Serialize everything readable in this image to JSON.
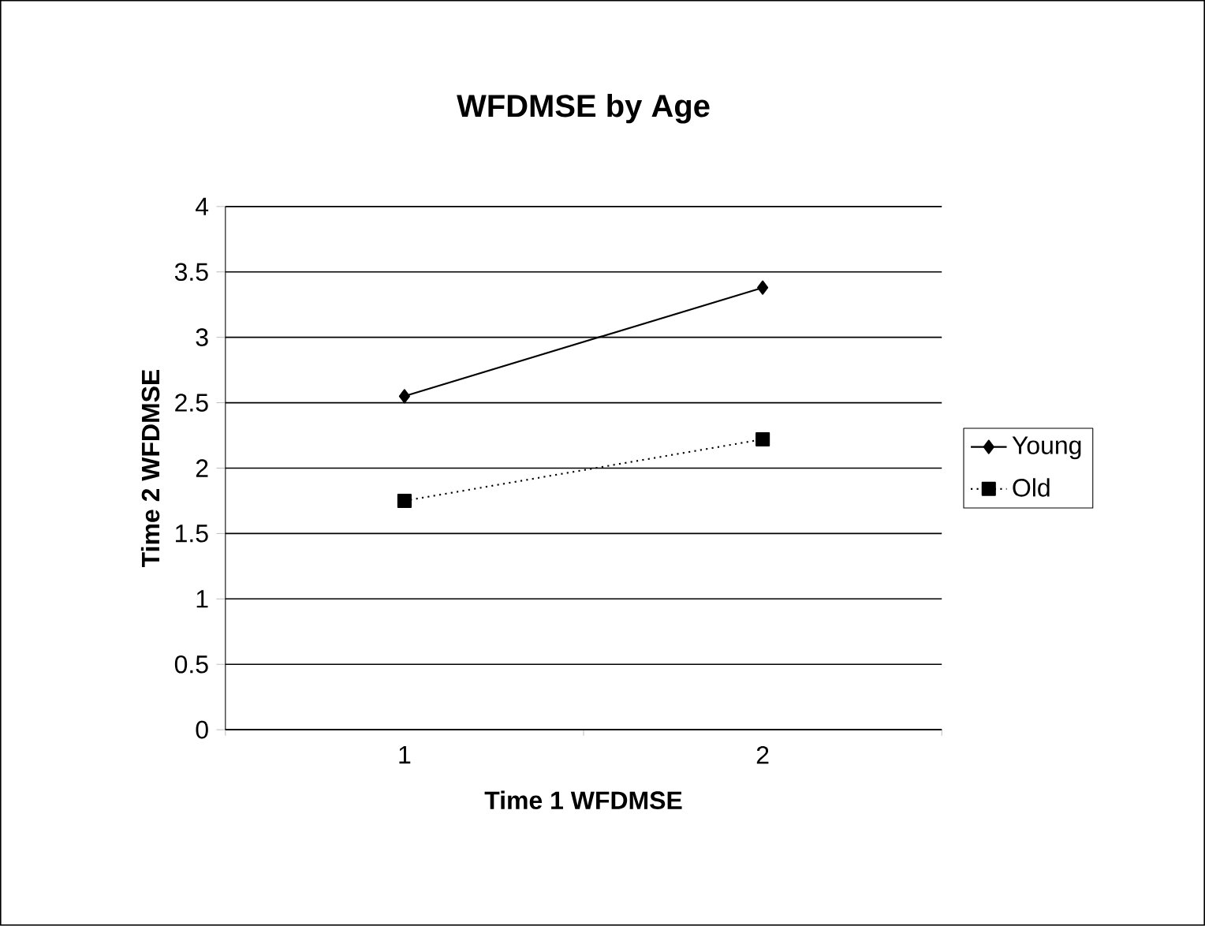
{
  "chart_data": {
    "type": "line",
    "title": "WFDMSE by Age",
    "xlabel": "Time 1 WFDMSE",
    "ylabel": "Time 2 WFDMSE",
    "categories": [
      "1",
      "2"
    ],
    "series": [
      {
        "name": "Young",
        "color": "#000000",
        "values": [
          2.55,
          3.38
        ],
        "marker": "diamond",
        "line_style": "solid"
      },
      {
        "name": "Old",
        "color": "#000000",
        "values": [
          1.75,
          2.22
        ],
        "marker": "square",
        "line_style": "dotted"
      }
    ],
    "ylim": [
      0,
      4
    ],
    "yticks": [
      0,
      0.5,
      1,
      1.5,
      2,
      2.5,
      3,
      3.5,
      4
    ],
    "grid": "y",
    "legend": "right"
  }
}
